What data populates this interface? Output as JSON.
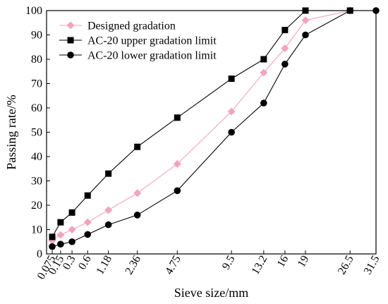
{
  "chart_data": {
    "type": "line",
    "xlabel": "Sieve size/mm",
    "ylabel": "Passing rate/%",
    "categories": [
      "0.075",
      "0.15",
      "0.3",
      "0.6",
      "1.18",
      "2.36",
      "4.75",
      "9.5",
      "13.2",
      "16",
      "19",
      "26.5",
      "31.5"
    ],
    "ylim": [
      0,
      100
    ],
    "yticks": [
      0,
      10,
      20,
      30,
      40,
      50,
      60,
      70,
      80,
      90,
      100
    ],
    "x_scale": "power 0.45 of sieve size",
    "legend_position": "top-left",
    "series": [
      {
        "name": "Designed gradation",
        "marker": "diamond",
        "color": "#f4a3bf",
        "x": [
          0.075,
          0.15,
          0.3,
          0.6,
          1.18,
          2.36,
          4.75,
          9.5,
          13.2,
          16,
          19,
          26.5
        ],
        "values": [
          5.5,
          7.8,
          10,
          13,
          18,
          25,
          37,
          58.5,
          74.5,
          84.5,
          96,
          100
        ]
      },
      {
        "name": "AC-20 upper gradation limit",
        "marker": "square",
        "color": "#000000",
        "x": [
          0.075,
          0.15,
          0.3,
          0.6,
          1.18,
          2.36,
          4.75,
          9.5,
          13.2,
          16,
          19,
          26.5
        ],
        "values": [
          7,
          13,
          17,
          24,
          33,
          44,
          56,
          72,
          80,
          92,
          100,
          100
        ]
      },
      {
        "name": "AC-20 lower gradation limit",
        "marker": "circle",
        "color": "#000000",
        "x": [
          0.075,
          0.15,
          0.3,
          0.6,
          1.18,
          2.36,
          4.75,
          9.5,
          13.2,
          16,
          19,
          26.5,
          31.5
        ],
        "values": [
          3,
          4,
          5,
          8,
          12,
          16,
          26,
          50,
          62,
          78,
          90,
          100,
          100
        ]
      }
    ]
  }
}
